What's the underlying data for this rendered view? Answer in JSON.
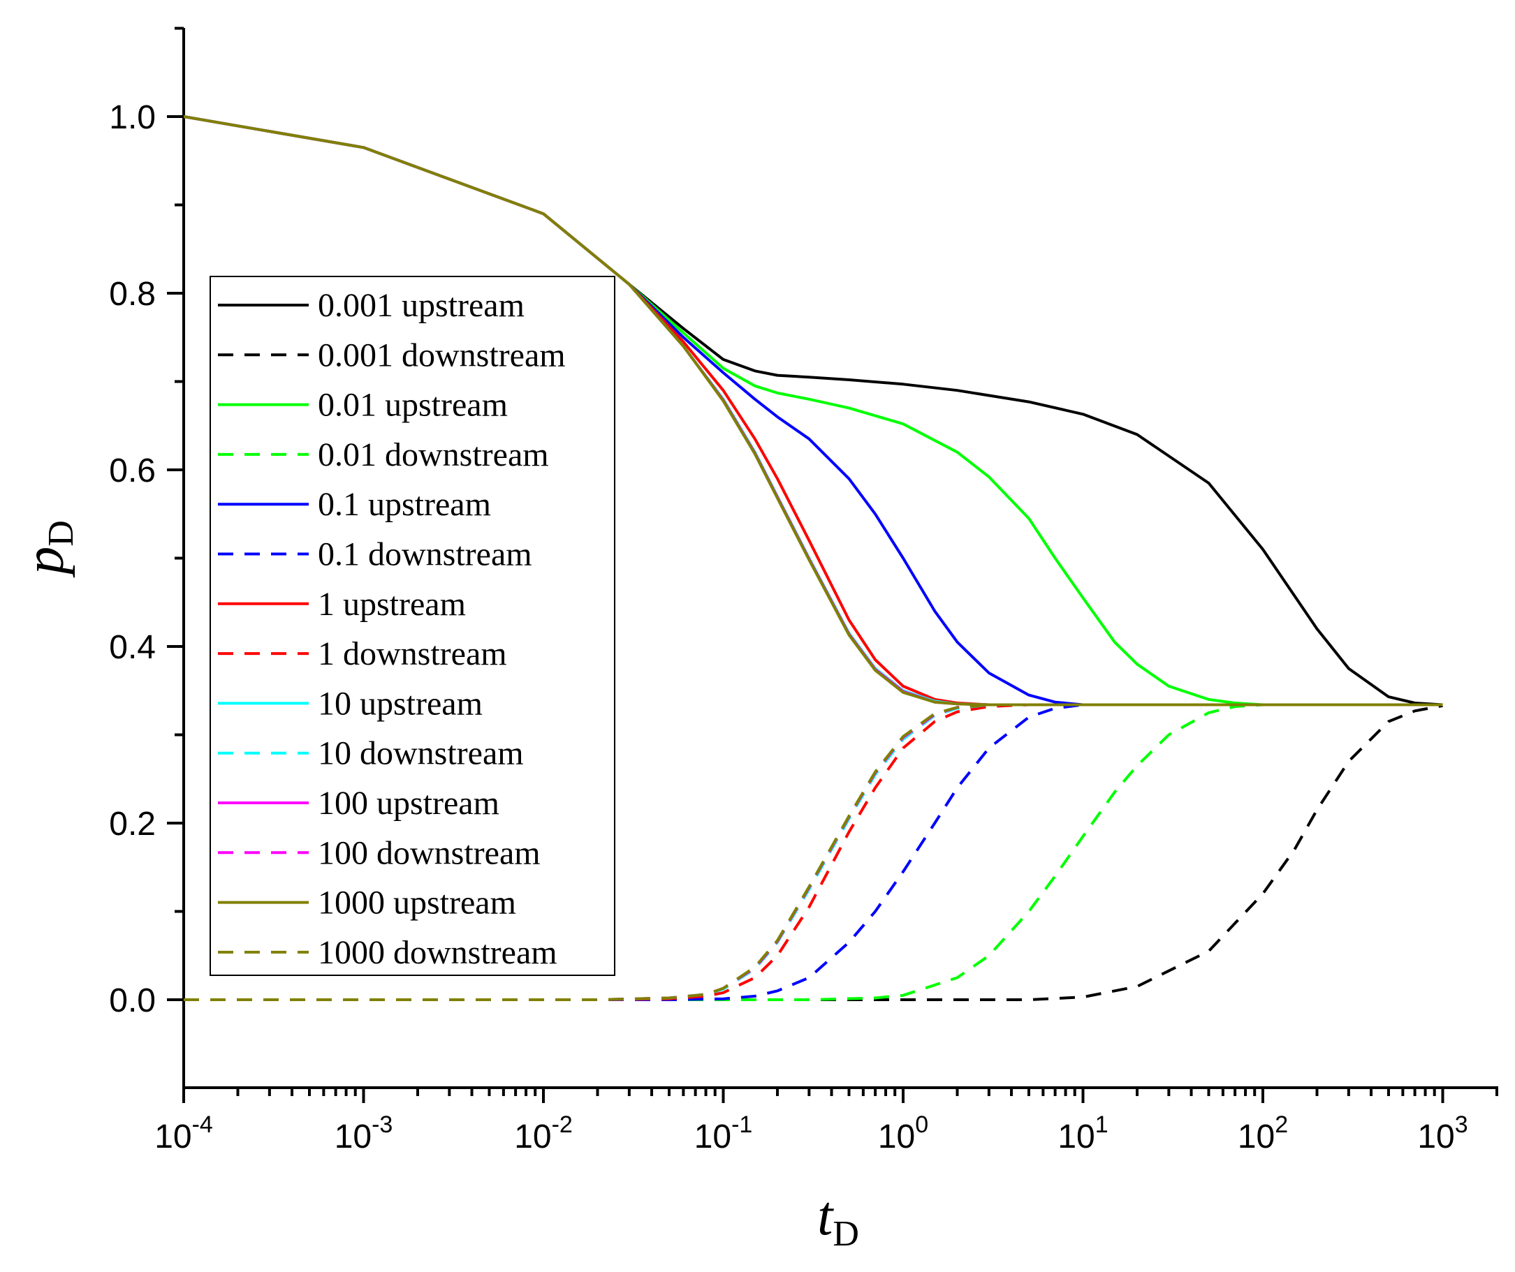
{
  "chart_data": {
    "type": "line",
    "title": "",
    "xlabel": {
      "main": "t",
      "sub": "D"
    },
    "ylabel": {
      "main": "p",
      "sub": "D"
    },
    "x_scale": "log",
    "xlim": [
      0.0001,
      2000
    ],
    "ylim": [
      -0.1,
      1.1
    ],
    "x_ticks": [
      {
        "base": "10",
        "exp": "-4"
      },
      {
        "base": "10",
        "exp": "-3"
      },
      {
        "base": "10",
        "exp": "-2"
      },
      {
        "base": "10",
        "exp": "-1"
      },
      {
        "base": "10",
        "exp": "0"
      },
      {
        "base": "10",
        "exp": "1"
      },
      {
        "base": "10",
        "exp": "2"
      },
      {
        "base": "10",
        "exp": "3"
      }
    ],
    "y_ticks": [
      "0.0",
      "0.2",
      "0.4",
      "0.6",
      "0.8",
      "1.0"
    ],
    "legend_position": "left-middle",
    "series": [
      {
        "name": "0.001 upstream",
        "color": "#000000",
        "dash": "solid",
        "x": [
          0.0001,
          0.001,
          0.01,
          0.03,
          0.06,
          0.1,
          0.15,
          0.2,
          0.3,
          0.5,
          1,
          2,
          5,
          10,
          20,
          50,
          100,
          200,
          300,
          500,
          700,
          1000
        ],
        "y": [
          1.0,
          0.965,
          0.89,
          0.81,
          0.76,
          0.725,
          0.712,
          0.707,
          0.705,
          0.702,
          0.697,
          0.69,
          0.677,
          0.663,
          0.64,
          0.585,
          0.51,
          0.42,
          0.375,
          0.343,
          0.336,
          0.334
        ]
      },
      {
        "name": "0.001 downstream",
        "color": "#000000",
        "dash": "dashed",
        "x": [
          0.0001,
          0.5,
          5,
          10,
          20,
          50,
          100,
          150,
          200,
          300,
          500,
          700,
          1000
        ],
        "y": [
          0.0,
          0.0,
          0.0,
          0.003,
          0.015,
          0.055,
          0.12,
          0.17,
          0.215,
          0.27,
          0.315,
          0.327,
          0.333
        ]
      },
      {
        "name": "0.01 upstream",
        "color": "#00ff00",
        "dash": "solid",
        "x": [
          0.0001,
          0.001,
          0.01,
          0.03,
          0.06,
          0.1,
          0.15,
          0.2,
          0.3,
          0.5,
          1,
          2,
          3,
          5,
          7,
          10,
          15,
          20,
          30,
          50,
          70,
          100,
          1000
        ],
        "y": [
          1.0,
          0.965,
          0.89,
          0.81,
          0.755,
          0.715,
          0.695,
          0.687,
          0.68,
          0.67,
          0.652,
          0.62,
          0.592,
          0.545,
          0.5,
          0.455,
          0.405,
          0.38,
          0.355,
          0.34,
          0.336,
          0.334,
          0.334
        ]
      },
      {
        "name": "0.01 downstream",
        "color": "#00ff00",
        "dash": "dashed",
        "x": [
          0.0001,
          0.3,
          0.7,
          1,
          2,
          3,
          5,
          7,
          10,
          15,
          20,
          30,
          50,
          70,
          100,
          1000
        ],
        "y": [
          0.0,
          0.0,
          0.002,
          0.005,
          0.025,
          0.05,
          0.1,
          0.14,
          0.185,
          0.235,
          0.265,
          0.3,
          0.325,
          0.332,
          0.334,
          0.334
        ]
      },
      {
        "name": "0.1 upstream",
        "color": "#0000ff",
        "dash": "solid",
        "x": [
          0.0001,
          0.001,
          0.01,
          0.03,
          0.06,
          0.1,
          0.15,
          0.2,
          0.3,
          0.5,
          0.7,
          1,
          1.5,
          2,
          3,
          5,
          7,
          10,
          15,
          1000
        ],
        "y": [
          1.0,
          0.965,
          0.89,
          0.81,
          0.75,
          0.71,
          0.68,
          0.66,
          0.635,
          0.59,
          0.55,
          0.5,
          0.44,
          0.405,
          0.37,
          0.345,
          0.337,
          0.334,
          0.334,
          0.334
        ]
      },
      {
        "name": "0.1 downstream",
        "color": "#0000ff",
        "dash": "dashed",
        "x": [
          0.0001,
          0.05,
          0.1,
          0.15,
          0.2,
          0.3,
          0.5,
          0.7,
          1,
          1.5,
          2,
          3,
          5,
          7,
          10,
          1000
        ],
        "y": [
          0.0,
          0.0,
          0.001,
          0.004,
          0.01,
          0.025,
          0.065,
          0.1,
          0.145,
          0.2,
          0.24,
          0.285,
          0.32,
          0.33,
          0.334,
          0.334
        ]
      },
      {
        "name": "1 upstream",
        "color": "#ff0000",
        "dash": "solid",
        "x": [
          0.0001,
          0.001,
          0.01,
          0.03,
          0.06,
          0.1,
          0.15,
          0.2,
          0.3,
          0.5,
          0.7,
          1,
          1.5,
          2,
          3,
          5,
          1000
        ],
        "y": [
          1.0,
          0.965,
          0.89,
          0.81,
          0.745,
          0.69,
          0.635,
          0.59,
          0.52,
          0.43,
          0.385,
          0.355,
          0.34,
          0.336,
          0.334,
          0.334,
          0.334
        ]
      },
      {
        "name": "1 downstream",
        "color": "#ff0000",
        "dash": "dashed",
        "x": [
          0.0001,
          0.02,
          0.05,
          0.08,
          0.1,
          0.15,
          0.2,
          0.3,
          0.5,
          0.7,
          1,
          1.5,
          2,
          3,
          5,
          1000
        ],
        "y": [
          0.0,
          0.0,
          0.001,
          0.004,
          0.008,
          0.025,
          0.05,
          0.105,
          0.19,
          0.24,
          0.285,
          0.315,
          0.326,
          0.332,
          0.334,
          0.334
        ]
      },
      {
        "name": "10 upstream",
        "color": "#00ffff",
        "dash": "solid",
        "x": [
          0.0001,
          0.001,
          0.01,
          0.03,
          0.06,
          0.1,
          0.15,
          0.2,
          0.3,
          0.5,
          0.7,
          1,
          1.5,
          2,
          3,
          1000
        ],
        "y": [
          1.0,
          0.965,
          0.89,
          0.81,
          0.74,
          0.68,
          0.62,
          0.57,
          0.5,
          0.415,
          0.375,
          0.35,
          0.338,
          0.335,
          0.334,
          0.334
        ]
      },
      {
        "name": "10 downstream",
        "color": "#00ffff",
        "dash": "dashed",
        "x": [
          0.0001,
          0.02,
          0.05,
          0.08,
          0.1,
          0.15,
          0.2,
          0.3,
          0.5,
          0.7,
          1,
          1.5,
          2,
          3,
          1000
        ],
        "y": [
          0.0,
          0.0,
          0.002,
          0.006,
          0.012,
          0.035,
          0.065,
          0.125,
          0.205,
          0.255,
          0.295,
          0.322,
          0.33,
          0.334,
          0.334
        ]
      },
      {
        "name": "100 upstream",
        "color": "#ff00ff",
        "dash": "solid",
        "x": [
          0.0001,
          0.001,
          0.01,
          0.03,
          0.06,
          0.1,
          0.15,
          0.2,
          0.3,
          0.5,
          0.7,
          1,
          1.5,
          2,
          3,
          1000
        ],
        "y": [
          1.0,
          0.965,
          0.89,
          0.81,
          0.74,
          0.679,
          0.619,
          0.569,
          0.499,
          0.414,
          0.374,
          0.349,
          0.337,
          0.335,
          0.334,
          0.334
        ]
      },
      {
        "name": "100 downstream",
        "color": "#ff00ff",
        "dash": "dashed",
        "x": [
          0.0001,
          0.02,
          0.05,
          0.08,
          0.1,
          0.15,
          0.2,
          0.3,
          0.5,
          0.7,
          1,
          1.5,
          2,
          3,
          1000
        ],
        "y": [
          0.0,
          0.0,
          0.002,
          0.006,
          0.013,
          0.036,
          0.066,
          0.127,
          0.207,
          0.257,
          0.297,
          0.323,
          0.331,
          0.334,
          0.334
        ]
      },
      {
        "name": "1000 upstream",
        "color": "#808000",
        "dash": "solid",
        "x": [
          0.0001,
          0.001,
          0.01,
          0.03,
          0.06,
          0.1,
          0.15,
          0.2,
          0.3,
          0.5,
          0.7,
          1,
          1.5,
          2,
          3,
          1000
        ],
        "y": [
          1.0,
          0.965,
          0.89,
          0.81,
          0.74,
          0.678,
          0.618,
          0.568,
          0.498,
          0.413,
          0.373,
          0.348,
          0.337,
          0.335,
          0.334,
          0.334
        ]
      },
      {
        "name": "1000 downstream",
        "color": "#808000",
        "dash": "dashed",
        "x": [
          0.0001,
          0.02,
          0.05,
          0.08,
          0.1,
          0.15,
          0.2,
          0.3,
          0.5,
          0.7,
          1,
          1.5,
          2,
          3,
          1000
        ],
        "y": [
          0.0,
          0.0,
          0.002,
          0.006,
          0.013,
          0.037,
          0.067,
          0.128,
          0.208,
          0.258,
          0.298,
          0.324,
          0.331,
          0.334,
          0.334
        ]
      }
    ]
  }
}
